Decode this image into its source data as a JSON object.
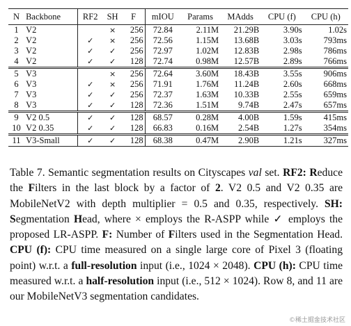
{
  "table": {
    "headers": [
      "N",
      "Backbone",
      "RF2",
      "SH",
      "F",
      "mIOU",
      "Params",
      "MAdds",
      "CPU (f)",
      "CPU (h)"
    ],
    "groups": [
      [
        [
          "1",
          "V2",
          "",
          "×",
          "256",
          "72.84",
          "2.11M",
          "21.29B",
          "3.90s",
          "1.02s"
        ],
        [
          "2",
          "V2",
          "✓",
          "×",
          "256",
          "72.56",
          "1.15M",
          "13.68B",
          "3.03s",
          "793ms"
        ],
        [
          "3",
          "V2",
          "✓",
          "✓",
          "256",
          "72.97",
          "1.02M",
          "12.83B",
          "2.98s",
          "786ms"
        ],
        [
          "4",
          "V2",
          "✓",
          "✓",
          "128",
          "72.74",
          "0.98M",
          "12.57B",
          "2.89s",
          "766ms"
        ]
      ],
      [
        [
          "5",
          "V3",
          "",
          "×",
          "256",
          "72.64",
          "3.60M",
          "18.43B",
          "3.55s",
          "906ms"
        ],
        [
          "6",
          "V3",
          "✓",
          "×",
          "256",
          "71.91",
          "1.76M",
          "11.24B",
          "2.60s",
          "668ms"
        ],
        [
          "7",
          "V3",
          "✓",
          "✓",
          "256",
          "72.37",
          "1.63M",
          "10.33B",
          "2.55s",
          "659ms"
        ],
        [
          "8",
          "V3",
          "✓",
          "✓",
          "128",
          "72.36",
          "1.51M",
          "9.74B",
          "2.47s",
          "657ms"
        ]
      ],
      [
        [
          "9",
          "V2 0.5",
          "✓",
          "✓",
          "128",
          "68.57",
          "0.28M",
          "4.00B",
          "1.59s",
          "415ms"
        ],
        [
          "10",
          "V2 0.35",
          "✓",
          "✓",
          "128",
          "66.83",
          "0.16M",
          "2.54B",
          "1.27s",
          "354ms"
        ]
      ],
      [
        [
          "11",
          "V3-Small",
          "✓",
          "✓",
          "128",
          "68.38",
          "0.47M",
          "2.90B",
          "1.21s",
          "327ms"
        ]
      ]
    ]
  },
  "caption": {
    "s1": "Table 7. Semantic segmentation results on Cityscapes ",
    "s2": "val",
    "s3": " set. ",
    "s4": "RF2",
    "s5": ": ",
    "s6": "R",
    "s7": "educe the ",
    "s8": "F",
    "s9": "ilters in the last block by a factor of ",
    "s10": "2",
    "s11": ". V2 0.5 and V2 0.35 are MobileNetV2 with depth multiplier = 0.5 and 0.35, respectively. ",
    "s12": "SH: S",
    "s13": "egmentation ",
    "s14": "H",
    "s15": "ead, where × employs the R-ASPP while ✓ employs the proposed LR-ASPP. ",
    "s16": "F:",
    "s17": " Number of ",
    "s18": "F",
    "s19": "ilters used in the Segmentation Head. ",
    "s20": "CPU (f):",
    "s21": " CPU time measured on a single large core of Pixel 3 (floating point) w.r.t. a ",
    "s22": "full-resolution",
    "s23": " input (i.e., 1024 × 2048). ",
    "s24": "CPU (h):",
    "s25": " CPU time measured w.r.t. a ",
    "s26": "half-resolution",
    "s27": " input (i.e., 512 × 1024). Row 8, and 11 are our MobileNetV3 segmentation candidates."
  },
  "watermark": "©稀土掘金技术社区"
}
